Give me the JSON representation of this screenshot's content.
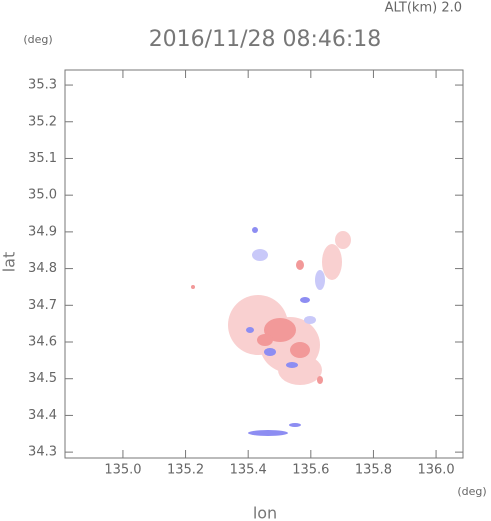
{
  "chart_data": {
    "type": "scatter",
    "title": "2016/11/28 08:46:18",
    "subtitle": "ALT(km) 2.0",
    "y_unit": "(deg)",
    "x_unit": "(deg)",
    "xlabel": "lon",
    "ylabel": "lat",
    "xlim": [
      134.815,
      136.086
    ],
    "ylim": [
      34.284,
      35.341
    ],
    "xticks": [
      {
        "value": 135.0,
        "label": "135.0"
      },
      135.2,
      135.4,
      135.6,
      135.8,
      {
        "value": 136.0,
        "label": "136.0"
      }
    ],
    "yticks": [
      34.3,
      34.4,
      34.5,
      34.6,
      34.7,
      34.8,
      34.9,
      {
        "value": 35.0,
        "label": "35.0"
      },
      35.1,
      35.2,
      35.3
    ]
  }
}
